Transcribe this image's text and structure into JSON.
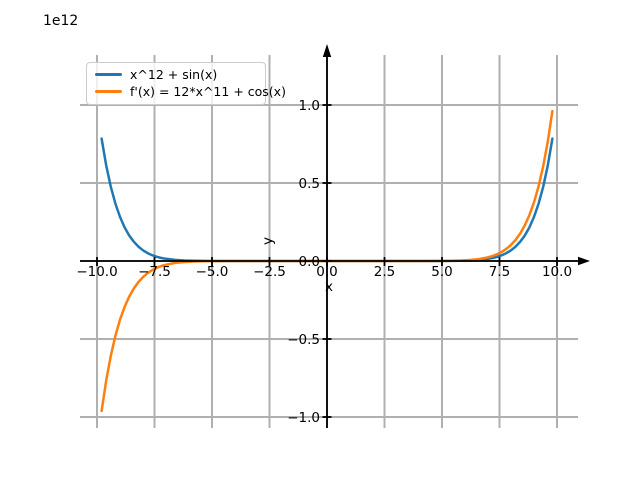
{
  "figure": {
    "offset_text": "1e12",
    "background": "#ffffff"
  },
  "chart_data": {
    "type": "line",
    "title": "",
    "xlabel": "x",
    "ylabel": "y",
    "y_scale_factor_text": "1e12",
    "y_units": "1e12",
    "grid": true,
    "legend_position": "upper left",
    "xlim": [
      -10.7,
      10.9
    ],
    "ylim_1e12": [
      -1.07,
      1.32
    ],
    "colors": {
      "grid": "#b0b0b0",
      "axis": "#000000"
    },
    "xticks": [
      {
        "v": -10,
        "label": "−10.0"
      },
      {
        "v": -7.5,
        "label": "−7.5"
      },
      {
        "v": -5,
        "label": "−5.0"
      },
      {
        "v": -2.5,
        "label": "−2.5"
      },
      {
        "v": 0,
        "label": "0.0"
      },
      {
        "v": 2.5,
        "label": "2.5"
      },
      {
        "v": 5,
        "label": "5.0"
      },
      {
        "v": 7.5,
        "label": "7.5"
      },
      {
        "v": 10,
        "label": "10.0"
      }
    ],
    "yticks": [
      {
        "v": 1.0,
        "label": "1.0"
      },
      {
        "v": 0.5,
        "label": "0.5"
      },
      {
        "v": 0,
        "label": "0.0"
      },
      {
        "v": -0.5,
        "label": "−0.5"
      },
      {
        "v": -1.0,
        "label": "−1.0"
      }
    ],
    "x": [
      -9.8,
      -9.6,
      -9.4,
      -9.2,
      -9.0,
      -8.8,
      -8.6,
      -8.4,
      -8.2,
      -8.0,
      -7.8,
      -7.6,
      -7.4,
      -7.2,
      -7.0,
      -6.6,
      -6.2,
      -5.8,
      -5.4,
      -5.0,
      -4.0,
      -3.0,
      -2.0,
      -1.0,
      0,
      1.0,
      2.0,
      3.0,
      4.0,
      5.0,
      5.4,
      5.8,
      6.2,
      6.6,
      7.0,
      7.2,
      7.4,
      7.6,
      7.8,
      8.0,
      8.2,
      8.4,
      8.6,
      8.8,
      9.0,
      9.2,
      9.4,
      9.6,
      9.8
    ],
    "series": [
      {
        "name": "x^12 + sin(x)",
        "color": "#1f77b4",
        "y_1e12": [
          0.7847,
          0.6128,
          0.4759,
          0.3677,
          0.2824,
          0.2157,
          0.1637,
          0.1234,
          0.0924,
          0.0687,
          0.0507,
          0.0371,
          0.027,
          0.0194,
          0.0138,
          0.0068,
          0.0032,
          0.0015,
          0.0006,
          0.0002,
          0,
          0,
          0,
          0,
          0,
          0,
          0,
          0,
          0,
          0.0002,
          0.0006,
          0.0015,
          0.0032,
          0.0068,
          0.0138,
          0.0194,
          0.027,
          0.0371,
          0.0507,
          0.0687,
          0.0924,
          0.1234,
          0.1637,
          0.2157,
          0.2824,
          0.3677,
          0.4759,
          0.6128,
          0.7847
        ]
      },
      {
        "name": "f'(x) = 12*x^11 + cos(x)",
        "color": "#ff7f0e",
        "y_1e12": [
          -0.9608,
          -0.7659,
          -0.6076,
          -0.4796,
          -0.3766,
          -0.2941,
          -0.2284,
          -0.1763,
          -0.1352,
          -0.1031,
          -0.0781,
          -0.0586,
          -0.0437,
          -0.0323,
          -0.0237,
          -0.0124,
          -0.0062,
          -0.003,
          -0.0014,
          -0.0006,
          0,
          0,
          0,
          0,
          0,
          0,
          0,
          0,
          0,
          0.0006,
          0.0014,
          0.003,
          0.0062,
          0.0124,
          0.0237,
          0.0323,
          0.0437,
          0.0586,
          0.0781,
          0.1031,
          0.1352,
          0.1763,
          0.2284,
          0.2941,
          0.3766,
          0.4796,
          0.6076,
          0.7659,
          0.9608
        ]
      }
    ]
  }
}
